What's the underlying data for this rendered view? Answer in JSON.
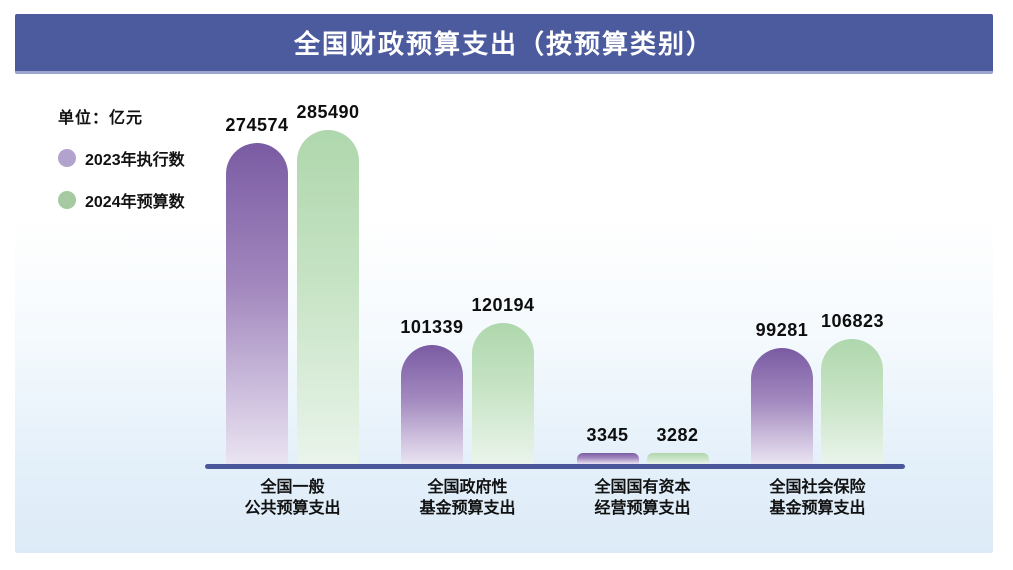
{
  "title": "全国财政预算支出（按预算类别）",
  "unit_label": "单位：亿元",
  "legend": {
    "items": [
      {
        "label": "2023年执行数",
        "color": "#b2a3ce"
      },
      {
        "label": "2024年预算数",
        "color": "#a5c9a1"
      }
    ]
  },
  "chart_data": {
    "type": "bar",
    "title": "全国财政预算支出（按预算类别）",
    "unit": "亿元",
    "categories": [
      "全国一般公共预算支出",
      "全国政府性基金预算支出",
      "全国国有资本经营预算支出",
      "全国社会保险基金预算支出"
    ],
    "category_label_lines": [
      [
        "全国一般",
        "公共预算支出"
      ],
      [
        "全国政府性",
        "基金预算支出"
      ],
      [
        "全国国有资本",
        "经营预算支出"
      ],
      [
        "全国社会保险",
        "基金预算支出"
      ]
    ],
    "series": [
      {
        "name": "2023年执行数",
        "values": [
          274574,
          101339,
          3345,
          99281
        ]
      },
      {
        "name": "2024年预算数",
        "values": [
          285490,
          120194,
          3282,
          106823
        ]
      }
    ],
    "ylim": [
      0,
      285490
    ],
    "grid": false,
    "legend_position": "top-left",
    "value_labels_shown": true
  },
  "colors": {
    "title_bar": "#4C5B9E",
    "axis": "#4A5899",
    "series": [
      {
        "top": "#7a5ba3",
        "mid": "#a288be",
        "bottom": "#eae4f2"
      },
      {
        "top": "#afd7ad",
        "mid": "#c6e3c4",
        "bottom": "#eaf4eb"
      }
    ]
  }
}
